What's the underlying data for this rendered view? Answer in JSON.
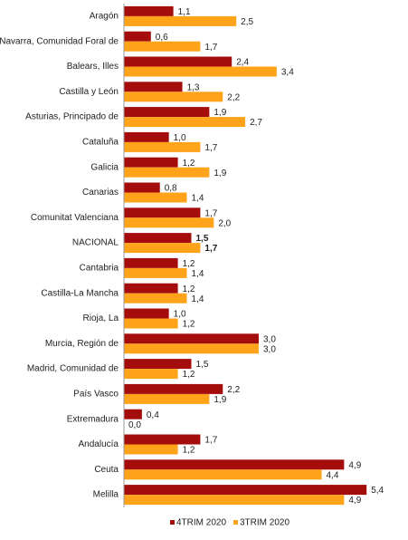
{
  "chart_data": {
    "type": "bar",
    "orientation": "horizontal",
    "categories": [
      "Aragón",
      "Navarra, Comunidad Foral de",
      "Balears, Illes",
      "Castilla y León",
      "Asturias, Principado de",
      "Cataluña",
      "Galicia",
      "Canarias",
      "Comunitat Valenciana",
      "NACIONAL",
      "Cantabria",
      "Castilla-La Mancha",
      "Rioja, La",
      "Murcia, Región de",
      "Madrid, Comunidad de",
      "País Vasco",
      "Extremadura",
      "Andalucía",
      "Ceuta",
      "Melilla"
    ],
    "series": [
      {
        "name": "4TRIM 2020",
        "color": "#a50d0d",
        "values": [
          1.1,
          0.6,
          2.4,
          1.3,
          1.9,
          1.0,
          1.2,
          0.8,
          1.7,
          1.5,
          1.2,
          1.2,
          1.0,
          3.0,
          1.5,
          2.2,
          0.4,
          1.7,
          4.9,
          5.4
        ],
        "value_labels": [
          "1,1",
          "0,6",
          "2,4",
          "1,3",
          "1,9",
          "1,0",
          "1,2",
          "0,8",
          "1,7",
          "1,5",
          "1,2",
          "1,2",
          "1,0",
          "3,0",
          "1,5",
          "2,2",
          "0,4",
          "1,7",
          "4,9",
          "5,4"
        ]
      },
      {
        "name": "3TRIM 2020",
        "color": "#ffa31a",
        "values": [
          2.5,
          1.7,
          3.4,
          2.2,
          2.7,
          1.7,
          1.9,
          1.4,
          2.0,
          1.7,
          1.4,
          1.4,
          1.2,
          3.0,
          1.2,
          1.9,
          0.0,
          1.2,
          4.4,
          4.9
        ],
        "value_labels": [
          "2,5",
          "1,7",
          "3,4",
          "2,2",
          "2,7",
          "1,7",
          "1,9",
          "1,4",
          "2,0",
          "1,7",
          "1,4",
          "1,4",
          "1,2",
          "3,0",
          "1,2",
          "1,9",
          "0,0",
          "1,2",
          "4,4",
          "4,9"
        ]
      }
    ],
    "xlim": [
      0,
      6
    ],
    "bold_categories": [
      9
    ],
    "legend": "bottom"
  }
}
